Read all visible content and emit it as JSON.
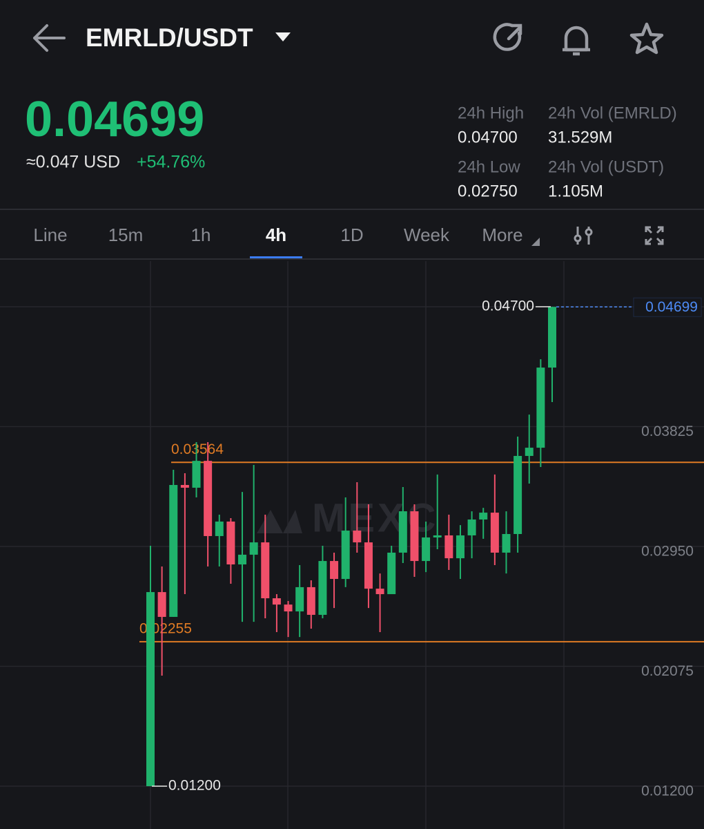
{
  "header": {
    "pair": "EMRLD/USDT"
  },
  "ticker": {
    "price": "0.04699",
    "usd": "≈0.047 USD",
    "change": "+54.76%",
    "stats": [
      {
        "label": "24h High",
        "value": "0.04700"
      },
      {
        "label": "24h Vol (EMRLD)",
        "value": "31.529M"
      },
      {
        "label": "24h Low",
        "value": "0.02750"
      },
      {
        "label": "24h Vol  (USDT)",
        "value": "1.105M"
      }
    ]
  },
  "tabs": {
    "items": [
      "Line",
      "15m",
      "1h",
      "4h",
      "1D",
      "Week",
      "More"
    ],
    "active": 3
  },
  "chart_data": {
    "type": "candlestick",
    "watermark": "MEXC",
    "up_color": "#20b26c",
    "down_color": "#f0506a",
    "grid": true,
    "ylim": [
      0.00938,
      0.05033
    ],
    "yticks": [
      {
        "value": 0.047,
        "label": "0.04700"
      },
      {
        "value": 0.03825,
        "label": "0.03825"
      },
      {
        "value": 0.0295,
        "label": "0.02950"
      },
      {
        "value": 0.02075,
        "label": "0.02075"
      },
      {
        "value": 0.012,
        "label": "0.01200"
      }
    ],
    "lines": [
      {
        "value": 0.03564,
        "label": "0.03564",
        "color": "#e07b24"
      },
      {
        "value": 0.02255,
        "label": "0.02255",
        "color": "#e07b24"
      }
    ],
    "max_label": {
      "value": 0.047,
      "label": "0.04700"
    },
    "min_label": {
      "value": 0.012,
      "label": "0.01200"
    },
    "last_price": {
      "value": 0.04699,
      "label": "0.04699",
      "color": "#4d8bf5"
    },
    "candles": [
      {
        "open": 0.012,
        "high": 0.02955,
        "low": 0.012,
        "close": 0.02617
      },
      {
        "open": 0.02617,
        "high": 0.02804,
        "low": 0.02007,
        "close": 0.02436
      },
      {
        "open": 0.02436,
        "high": 0.0351,
        "low": 0.02436,
        "close": 0.03399
      },
      {
        "open": 0.03399,
        "high": 0.03485,
        "low": 0.02602,
        "close": 0.03379
      },
      {
        "open": 0.03379,
        "high": 0.03712,
        "low": 0.03308,
        "close": 0.03575
      },
      {
        "open": 0.03575,
        "high": 0.03712,
        "low": 0.02804,
        "close": 0.03026
      },
      {
        "open": 0.03026,
        "high": 0.03182,
        "low": 0.02804,
        "close": 0.03132
      },
      {
        "open": 0.03132,
        "high": 0.03157,
        "low": 0.02678,
        "close": 0.02819
      },
      {
        "open": 0.02819,
        "high": 0.03348,
        "low": 0.024,
        "close": 0.0289
      },
      {
        "open": 0.0289,
        "high": 0.03545,
        "low": 0.024,
        "close": 0.0298
      },
      {
        "open": 0.0298,
        "high": 0.03182,
        "low": 0.02426,
        "close": 0.02572
      },
      {
        "open": 0.02572,
        "high": 0.02602,
        "low": 0.02325,
        "close": 0.02526
      },
      {
        "open": 0.02526,
        "high": 0.02552,
        "low": 0.02289,
        "close": 0.02476
      },
      {
        "open": 0.02476,
        "high": 0.02814,
        "low": 0.02289,
        "close": 0.02653
      },
      {
        "open": 0.02653,
        "high": 0.02703,
        "low": 0.0235,
        "close": 0.02451
      },
      {
        "open": 0.02451,
        "high": 0.02955,
        "low": 0.02426,
        "close": 0.02844
      },
      {
        "open": 0.02844,
        "high": 0.02905,
        "low": 0.02501,
        "close": 0.02713
      },
      {
        "open": 0.02713,
        "high": 0.03308,
        "low": 0.02653,
        "close": 0.03066
      },
      {
        "open": 0.03066,
        "high": 0.03419,
        "low": 0.02905,
        "close": 0.0298
      },
      {
        "open": 0.0298,
        "high": 0.03258,
        "low": 0.02501,
        "close": 0.02642
      },
      {
        "open": 0.02642,
        "high": 0.02753,
        "low": 0.02325,
        "close": 0.02602
      },
      {
        "open": 0.02602,
        "high": 0.02955,
        "low": 0.02602,
        "close": 0.02905
      },
      {
        "open": 0.02905,
        "high": 0.03384,
        "low": 0.02829,
        "close": 0.03207
      },
      {
        "open": 0.03207,
        "high": 0.03258,
        "low": 0.02728,
        "close": 0.02844
      },
      {
        "open": 0.02844,
        "high": 0.03132,
        "low": 0.02763,
        "close": 0.03016
      },
      {
        "open": 0.03016,
        "high": 0.03475,
        "low": 0.0293,
        "close": 0.03031
      },
      {
        "open": 0.03031,
        "high": 0.03182,
        "low": 0.02779,
        "close": 0.02864
      },
      {
        "open": 0.02864,
        "high": 0.03106,
        "low": 0.02713,
        "close": 0.03031
      },
      {
        "open": 0.03031,
        "high": 0.03207,
        "low": 0.02864,
        "close": 0.03147
      },
      {
        "open": 0.03147,
        "high": 0.03232,
        "low": 0.03006,
        "close": 0.03197
      },
      {
        "open": 0.03197,
        "high": 0.03475,
        "low": 0.02814,
        "close": 0.02905
      },
      {
        "open": 0.02905,
        "high": 0.03207,
        "low": 0.02753,
        "close": 0.03041
      },
      {
        "open": 0.03041,
        "high": 0.03752,
        "low": 0.02905,
        "close": 0.03611
      },
      {
        "open": 0.03611,
        "high": 0.03913,
        "low": 0.03409,
        "close": 0.03671
      },
      {
        "open": 0.03671,
        "high": 0.04317,
        "low": 0.0353,
        "close": 0.04256
      },
      {
        "open": 0.04256,
        "high": 0.047,
        "low": 0.04004,
        "close": 0.04699
      }
    ]
  }
}
